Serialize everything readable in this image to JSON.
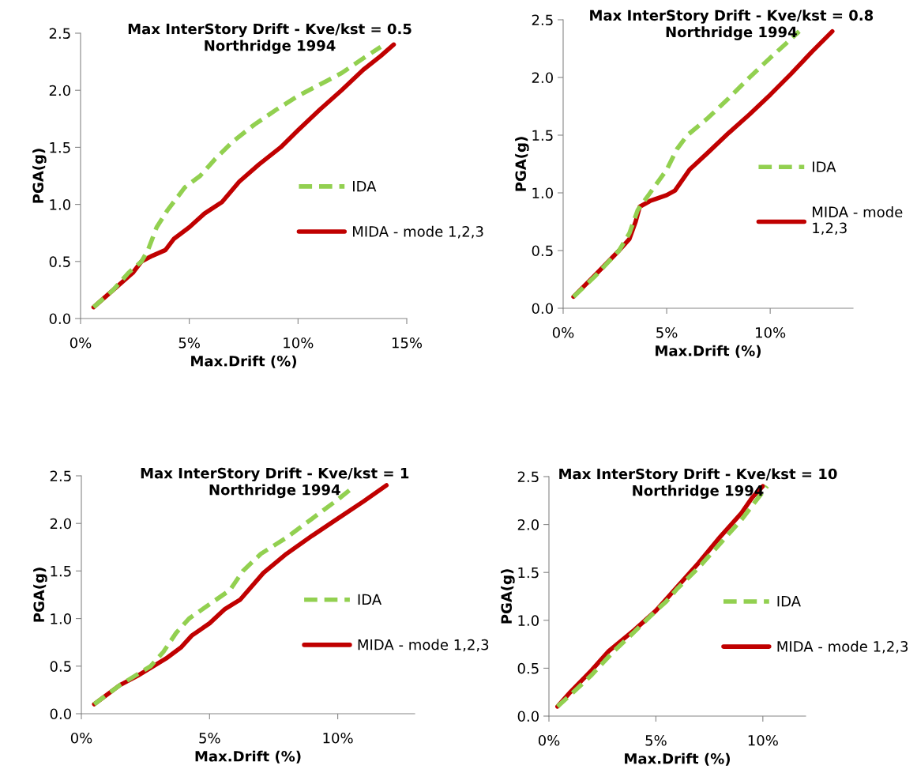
{
  "chart_data": [
    {
      "type": "line",
      "title": "Max InterStory Drift - Kve/kst = 0.5\nNorthridge 1994",
      "xlabel": "Max.Drift (%)",
      "ylabel": "PGA(g)",
      "xlim": [
        0,
        15
      ],
      "ylim": [
        0,
        2.5
      ],
      "xticks": [
        {
          "value": 0,
          "label": "0%"
        },
        {
          "value": 5,
          "label": "5%"
        },
        {
          "value": 10,
          "label": "10%"
        },
        {
          "value": 15,
          "label": "15%"
        }
      ],
      "yticks": [
        {
          "value": 0,
          "label": "0.0"
        },
        {
          "value": 0.5,
          "label": "0.5"
        },
        {
          "value": 1,
          "label": "1.0"
        },
        {
          "value": 1.5,
          "label": "1.5"
        },
        {
          "value": 2,
          "label": "2.0"
        },
        {
          "value": 2.5,
          "label": "2.5"
        }
      ],
      "legend": "right",
      "grid": false,
      "marker": "none",
      "series": [
        {
          "name": "IDA",
          "color": "#92d050",
          "line_style": "dashed",
          "x": [
            0.6,
            1.5,
            2.2,
            2.8,
            3.1,
            3.5,
            4.0,
            4.8,
            5.5,
            6.2,
            7,
            8,
            9,
            10,
            11,
            12,
            13,
            13.8
          ],
          "values": [
            0.1,
            0.25,
            0.4,
            0.5,
            0.6,
            0.8,
            0.95,
            1.15,
            1.25,
            1.4,
            1.55,
            1.7,
            1.83,
            1.95,
            2.05,
            2.15,
            2.28,
            2.38
          ]
        },
        {
          "name": "MIDA - mode 1,2,3",
          "color": "#c00000",
          "line_style": "solid",
          "x": [
            0.6,
            1.5,
            2.4,
            2.8,
            3.3,
            3.9,
            4.3,
            5,
            5.7,
            6.5,
            7.3,
            8.2,
            9.2,
            10,
            11,
            12,
            13,
            13.8,
            14.4
          ],
          "values": [
            0.1,
            0.25,
            0.4,
            0.5,
            0.55,
            0.6,
            0.7,
            0.8,
            0.92,
            1.02,
            1.2,
            1.35,
            1.5,
            1.65,
            1.83,
            2.0,
            2.18,
            2.3,
            2.4
          ]
        }
      ]
    },
    {
      "type": "line",
      "title": "Max InterStory Drift - Kve/kst = 0.8\nNorthridge 1994",
      "xlabel": "Max.Drift (%)",
      "ylabel": "PGA(g)",
      "xlim": [
        0,
        14
      ],
      "ylim": [
        0,
        2.5
      ],
      "xticks": [
        {
          "value": 0,
          "label": "0%"
        },
        {
          "value": 5,
          "label": "5%"
        },
        {
          "value": 10,
          "label": "10%"
        }
      ],
      "yticks": [
        {
          "value": 0,
          "label": "0.0"
        },
        {
          "value": 0.5,
          "label": "0.5"
        },
        {
          "value": 1,
          "label": "1.0"
        },
        {
          "value": 1.5,
          "label": "1.5"
        },
        {
          "value": 2,
          "label": "2.0"
        },
        {
          "value": 2.5,
          "label": "2.5"
        }
      ],
      "legend": "right",
      "grid": false,
      "marker": "none",
      "series": [
        {
          "name": "IDA",
          "color": "#92d050",
          "line_style": "dashed",
          "x": [
            0.5,
            1.5,
            2.7,
            3.2,
            3.6,
            4.2,
            5,
            5.5,
            6,
            7,
            8,
            9,
            10,
            10.8,
            11.4
          ],
          "values": [
            0.1,
            0.27,
            0.5,
            0.65,
            0.85,
            1.0,
            1.2,
            1.38,
            1.5,
            1.65,
            1.82,
            2.0,
            2.17,
            2.3,
            2.4
          ]
        },
        {
          "name": "MIDA - mode 1,2,3",
          "color": "#c00000",
          "line_style": "solid",
          "x": [
            0.5,
            1.5,
            2.7,
            3.2,
            3.5,
            3.7,
            4.2,
            5,
            5.4,
            6.1,
            7,
            8,
            9,
            10,
            11,
            12,
            13
          ],
          "values": [
            0.1,
            0.28,
            0.5,
            0.6,
            0.75,
            0.88,
            0.93,
            0.98,
            1.02,
            1.2,
            1.35,
            1.52,
            1.68,
            1.85,
            2.03,
            2.22,
            2.4
          ]
        }
      ]
    },
    {
      "type": "line",
      "title": "Max InterStory Drift - Kve/kst = 1\nNorthridge 1994",
      "xlabel": "Max.Drift (%)",
      "ylabel": "PGA(g)",
      "xlim": [
        0,
        13
      ],
      "ylim": [
        0,
        2.5
      ],
      "xticks": [
        {
          "value": 0,
          "label": "0%"
        },
        {
          "value": 5,
          "label": "5%"
        },
        {
          "value": 10,
          "label": "10%"
        }
      ],
      "yticks": [
        {
          "value": 0,
          "label": "0.0"
        },
        {
          "value": 0.5,
          "label": "0.5"
        },
        {
          "value": 1,
          "label": "1.0"
        },
        {
          "value": 1.5,
          "label": "1.5"
        },
        {
          "value": 2,
          "label": "2.0"
        },
        {
          "value": 2.5,
          "label": "2.5"
        }
      ],
      "legend": "right",
      "grid": false,
      "marker": "none",
      "series": [
        {
          "name": "IDA",
          "color": "#92d050",
          "line_style": "dashed",
          "x": [
            0.5,
            1.5,
            2.7,
            3.2,
            3.7,
            4.2,
            5,
            5.8,
            6.3,
            7,
            8,
            9,
            10,
            10.6
          ],
          "values": [
            0.1,
            0.3,
            0.5,
            0.65,
            0.85,
            1.0,
            1.15,
            1.3,
            1.5,
            1.68,
            1.85,
            2.05,
            2.25,
            2.38
          ]
        },
        {
          "name": "MIDA - mode 1,2,3",
          "color": "#c00000",
          "line_style": "solid",
          "x": [
            0.5,
            1.5,
            2.2,
            3.3,
            3.9,
            4.3,
            5,
            5.6,
            6.2,
            7.1,
            8,
            9,
            10,
            11,
            11.9
          ],
          "values": [
            0.1,
            0.3,
            0.4,
            0.58,
            0.7,
            0.82,
            0.95,
            1.1,
            1.2,
            1.48,
            1.68,
            1.87,
            2.05,
            2.23,
            2.4
          ]
        }
      ]
    },
    {
      "type": "line",
      "title": "Max InterStory Drift - Kve/kst = 10\nNorthridge 1994",
      "xlabel": "Max.Drift (%)",
      "ylabel": "PGA(g)",
      "xlim": [
        0,
        12
      ],
      "ylim": [
        0,
        2.5
      ],
      "xticks": [
        {
          "value": 0,
          "label": "0%"
        },
        {
          "value": 5,
          "label": "5%"
        },
        {
          "value": 10,
          "label": "10%"
        }
      ],
      "yticks": [
        {
          "value": 0,
          "label": "0.0"
        },
        {
          "value": 0.5,
          "label": "0.5"
        },
        {
          "value": 1,
          "label": "1.0"
        },
        {
          "value": 1.5,
          "label": "1.5"
        },
        {
          "value": 2,
          "label": "2.0"
        },
        {
          "value": 2.5,
          "label": "2.5"
        }
      ],
      "legend": "right",
      "grid": false,
      "marker": "none",
      "series": [
        {
          "name": "IDA",
          "color": "#92d050",
          "line_style": "dashed",
          "x": [
            0.4,
            1,
            2,
            3,
            4,
            5,
            5.5,
            6,
            7,
            8,
            9,
            10.2
          ],
          "values": [
            0.1,
            0.22,
            0.43,
            0.67,
            0.88,
            1.1,
            1.2,
            1.33,
            1.55,
            1.8,
            2.05,
            2.4
          ]
        },
        {
          "name": "MIDA - mode 1,2,3",
          "color": "#c00000",
          "line_style": "solid",
          "x": [
            0.4,
            1,
            2,
            2.8,
            4,
            5,
            5.4,
            6,
            7,
            8,
            9,
            9.5,
            10
          ],
          "values": [
            0.1,
            0.25,
            0.48,
            0.68,
            0.9,
            1.1,
            1.2,
            1.35,
            1.6,
            1.87,
            2.12,
            2.28,
            2.4
          ]
        }
      ]
    }
  ]
}
